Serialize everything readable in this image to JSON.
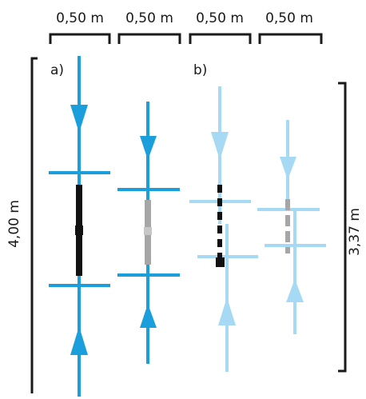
{
  "figure": {
    "top_dimensions": [
      "0,50 m",
      "0,50 m",
      "0,50 m",
      "0,50 m"
    ],
    "panels": {
      "a": "a)",
      "b": "b)"
    },
    "left_height": "4,00 m",
    "right_height": "3,37 m"
  },
  "colors": {
    "primary_blue": "#1a9fdc",
    "light_blue": "#a6d9f3",
    "black": "#111111",
    "gray": "#a6a6a6",
    "light_gray": "#c6c6c6",
    "bracket": "#1a1a1a"
  }
}
